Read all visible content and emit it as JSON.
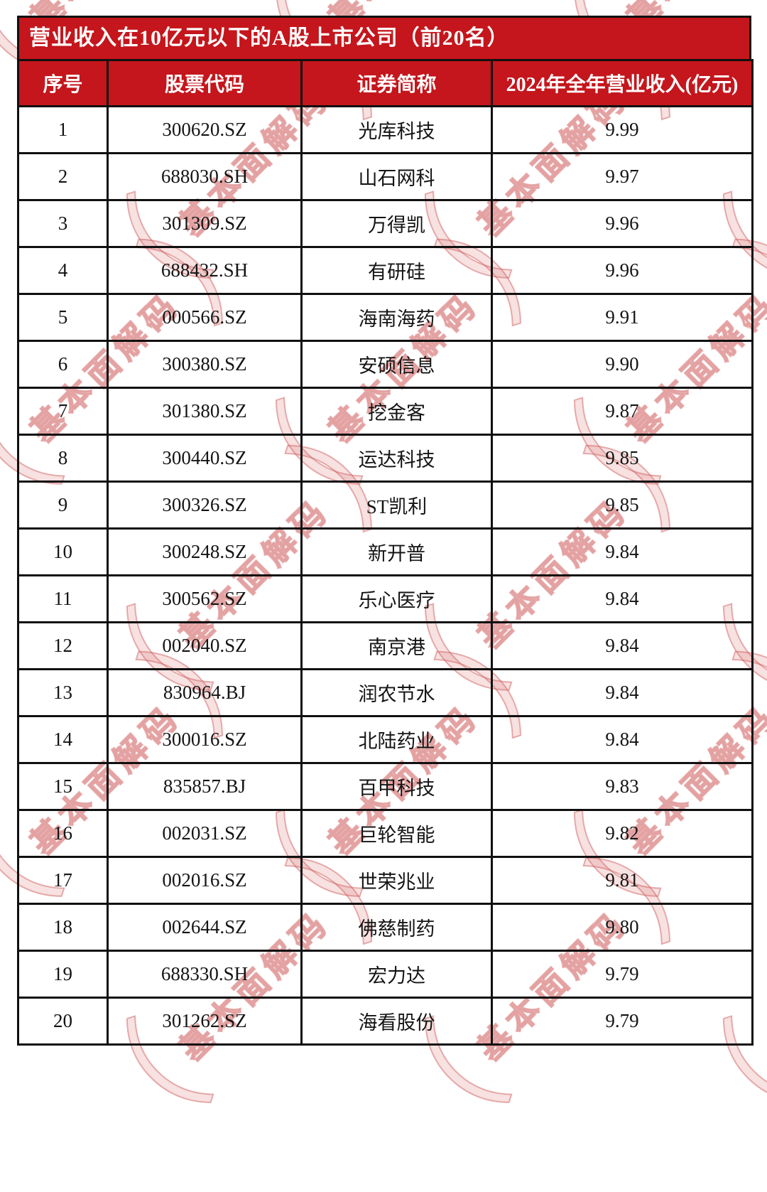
{
  "title": "营业收入在10亿元以下的A股上市公司（前20名）",
  "watermark": {
    "text": "基本面解码",
    "open_bracket": "（",
    "close_bracket": "）",
    "color": "#cc5c5c"
  },
  "colors": {
    "accent_red": "#c4161c",
    "border_black": "#101010",
    "text_black": "#141414",
    "header_text": "#ffffff"
  },
  "table": {
    "columns": [
      "序号",
      "股票代码",
      "证券简称",
      "2024年全年营业收入(亿元)"
    ],
    "rows": [
      [
        "1",
        "300620.SZ",
        "光库科技",
        "9.99"
      ],
      [
        "2",
        "688030.SH",
        "山石网科",
        "9.97"
      ],
      [
        "3",
        "301309.SZ",
        "万得凯",
        "9.96"
      ],
      [
        "4",
        "688432.SH",
        "有研硅",
        "9.96"
      ],
      [
        "5",
        "000566.SZ",
        "海南海药",
        "9.91"
      ],
      [
        "6",
        "300380.SZ",
        "安硕信息",
        "9.90"
      ],
      [
        "7",
        "301380.SZ",
        "挖金客",
        "9.87"
      ],
      [
        "8",
        "300440.SZ",
        "运达科技",
        "9.85"
      ],
      [
        "9",
        "300326.SZ",
        "ST凯利",
        "9.85"
      ],
      [
        "10",
        "300248.SZ",
        "新开普",
        "9.84"
      ],
      [
        "11",
        "300562.SZ",
        "乐心医疗",
        "9.84"
      ],
      [
        "12",
        "002040.SZ",
        "南京港",
        "9.84"
      ],
      [
        "13",
        "830964.BJ",
        "润农节水",
        "9.84"
      ],
      [
        "14",
        "300016.SZ",
        "北陆药业",
        "9.84"
      ],
      [
        "15",
        "835857.BJ",
        "百甲科技",
        "9.83"
      ],
      [
        "16",
        "002031.SZ",
        "巨轮智能",
        "9.82"
      ],
      [
        "17",
        "002016.SZ",
        "世荣兆业",
        "9.81"
      ],
      [
        "18",
        "002644.SZ",
        "佛慈制药",
        "9.80"
      ],
      [
        "19",
        "688330.SH",
        "宏力达",
        "9.79"
      ],
      [
        "20",
        "301262.SZ",
        "海看股份",
        "9.79"
      ]
    ]
  }
}
